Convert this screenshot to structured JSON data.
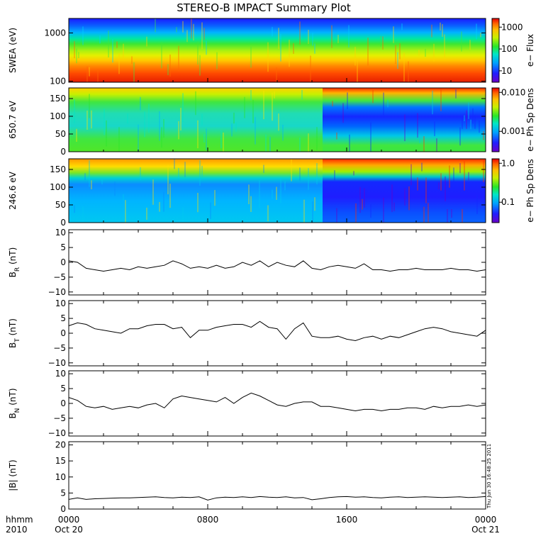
{
  "chart_data": {
    "title": "STEREO-B IMPACT Summary Plot",
    "time_axis": {
      "type": "time",
      "corner_labels": [
        "hhmm",
        "2010"
      ],
      "ticks": [
        {
          "at_hours": 0,
          "hhmm": "0000",
          "date": "Oct 20"
        },
        {
          "at_hours": 8,
          "hhmm": "0800",
          "date": ""
        },
        {
          "at_hours": 16,
          "hhmm": "1600",
          "date": ""
        },
        {
          "at_hours": 24,
          "hhmm": "0000",
          "date": "Oct 21"
        }
      ],
      "range_hours": [
        0,
        24
      ]
    },
    "spectrograms": [
      {
        "type": "heatmap",
        "ylabel": "SWEA (eV)",
        "yscale": "log",
        "ylim": [
          95,
          2000
        ],
        "yticks": [
          "1000",
          "100"
        ],
        "yticks_values": [
          1000,
          100
        ],
        "colorbar": {
          "label": "e− Flux",
          "scale": "log",
          "ticks": [
            "1000",
            "100",
            "10"
          ],
          "tick_values": [
            1000,
            100,
            10
          ],
          "range": [
            3,
            2500
          ]
        },
        "colormap": "rainbow",
        "description": "energy flux highest (red) at low energies, falling to blue above about 1000 eV"
      },
      {
        "type": "heatmap",
        "ylabel": "650.7 eV",
        "yscale": "linear",
        "ylim": [
          0,
          180
        ],
        "yticks": [
          "150",
          "100",
          "50",
          "0"
        ],
        "yticks_values": [
          150,
          100,
          50,
          0
        ],
        "colorbar": {
          "label": "e− Ph Sp Dens",
          "scale": "log",
          "ticks": [
            "0.010",
            "0.001"
          ],
          "tick_values": [
            0.01,
            0.001
          ],
          "range": [
            0.0003,
            0.013
          ]
        },
        "colormap": "rainbow",
        "description": "pitch angle distribution; depletion near 90-120 degrees after ~14:20"
      },
      {
        "type": "heatmap",
        "ylabel": "246.6 eV",
        "yscale": "linear",
        "ylim": [
          0,
          180
        ],
        "yticks": [
          "150",
          "100",
          "50",
          "0"
        ],
        "yticks_values": [
          150,
          100,
          50,
          0
        ],
        "colorbar": {
          "label": "e− Ph Sp Dens",
          "scale": "log",
          "ticks": [
            "1.0",
            "0.1"
          ],
          "tick_values": [
            1.0,
            0.1
          ],
          "range": [
            0.03,
            1.3
          ]
        },
        "colormap": "rainbow",
        "description": "pitch angle distribution; strong strahl near 180 degrees after ~14:20"
      }
    ],
    "line_panels": [
      {
        "type": "line",
        "ylabel_main": "B",
        "ylabel_sub": "R",
        "ylabel_rest": " (nT)",
        "ylim": [
          -11,
          11
        ],
        "yticks": [
          "10",
          "5",
          "0",
          "−5",
          "−10"
        ],
        "yticks_values": [
          10,
          5,
          0,
          -5,
          -10
        ],
        "x": [
          0,
          0.5,
          1,
          1.5,
          2,
          2.5,
          3,
          3.5,
          4,
          4.5,
          5,
          5.5,
          6,
          6.5,
          7,
          7.5,
          8,
          8.5,
          9,
          9.5,
          10,
          10.5,
          11,
          11.5,
          12,
          12.5,
          13,
          13.5,
          14,
          14.5,
          15,
          15.5,
          16,
          16.5,
          17,
          17.5,
          18,
          18.5,
          19,
          19.5,
          20,
          20.5,
          21,
          21.5,
          22,
          22.5,
          23,
          23.5,
          24
        ],
        "y": [
          0.5,
          0,
          -2,
          -2.5,
          -3,
          -2.5,
          -2,
          -2.5,
          -1.5,
          -2,
          -1.5,
          -1,
          0.5,
          -0.5,
          -2,
          -1.5,
          -2,
          -1,
          -2,
          -1.5,
          0,
          -1,
          0.5,
          -1.5,
          0,
          -1,
          -1.5,
          0.5,
          -2,
          -2.5,
          -1.5,
          -1,
          -1.5,
          -2,
          -0.5,
          -2.5,
          -2.5,
          -3,
          -2.5,
          -2.5,
          -2,
          -2.5,
          -2.5,
          -2.5,
          -2,
          -2.5,
          -2.5,
          -3,
          -2.5
        ]
      },
      {
        "type": "line",
        "ylabel_main": "B",
        "ylabel_sub": "T",
        "ylabel_rest": " (nT)",
        "ylim": [
          -11,
          11
        ],
        "yticks": [
          "10",
          "5",
          "0",
          "−5",
          "−10"
        ],
        "yticks_values": [
          10,
          5,
          0,
          -5,
          -10
        ],
        "x": [
          0,
          0.5,
          1,
          1.5,
          2,
          2.5,
          3,
          3.5,
          4,
          4.5,
          5,
          5.5,
          6,
          6.5,
          7,
          7.5,
          8,
          8.5,
          9,
          9.5,
          10,
          10.5,
          11,
          11.5,
          12,
          12.5,
          13,
          13.5,
          14,
          14.5,
          15,
          15.5,
          16,
          16.5,
          17,
          17.5,
          18,
          18.5,
          19,
          19.5,
          20,
          20.5,
          21,
          21.5,
          22,
          22.5,
          23,
          23.5,
          24
        ],
        "y": [
          2.5,
          3.5,
          3,
          1.5,
          1,
          0.5,
          0,
          1.5,
          1.5,
          2.5,
          3,
          3,
          1.5,
          2,
          -1.5,
          1,
          1,
          2,
          2.5,
          3,
          3,
          2,
          4,
          2,
          1.5,
          -2,
          1.5,
          3.5,
          -1,
          -1.5,
          -1.5,
          -1,
          -2,
          -2.5,
          -1.5,
          -1,
          -2,
          -1,
          -1.5,
          -0.5,
          0.5,
          1.5,
          2,
          1.5,
          0.5,
          0,
          -0.5,
          -1,
          1
        ]
      },
      {
        "type": "line",
        "ylabel_main": "B",
        "ylabel_sub": "N",
        "ylabel_rest": " (nT)",
        "ylim": [
          -11,
          11
        ],
        "yticks": [
          "10",
          "5",
          "0",
          "−5",
          "−10"
        ],
        "yticks_values": [
          10,
          5,
          0,
          -5,
          -10
        ],
        "x": [
          0,
          0.5,
          1,
          1.5,
          2,
          2.5,
          3,
          3.5,
          4,
          4.5,
          5,
          5.5,
          6,
          6.5,
          7,
          7.5,
          8,
          8.5,
          9,
          9.5,
          10,
          10.5,
          11,
          11.5,
          12,
          12.5,
          13,
          13.5,
          14,
          14.5,
          15,
          15.5,
          16,
          16.5,
          17,
          17.5,
          18,
          18.5,
          19,
          19.5,
          20,
          20.5,
          21,
          21.5,
          22,
          22.5,
          23,
          23.5,
          24
        ],
        "y": [
          2,
          1,
          -1,
          -1.5,
          -1,
          -2,
          -1.5,
          -1,
          -1.5,
          -0.5,
          0,
          -1.5,
          1.5,
          2.5,
          2,
          1.5,
          1,
          0.5,
          2,
          0,
          2,
          3.5,
          2.5,
          1,
          -0.5,
          -1,
          0,
          0.5,
          0.5,
          -1,
          -1,
          -1.5,
          -2,
          -2.5,
          -2,
          -2,
          -2.5,
          -2,
          -2,
          -1.5,
          -1.5,
          -2,
          -1,
          -1.5,
          -1,
          -1,
          -0.5,
          -1,
          -0.5
        ]
      },
      {
        "type": "line",
        "ylabel_main": "|B|",
        "ylabel_sub": "",
        "ylabel_rest": " (nT)",
        "ylim": [
          0,
          21
        ],
        "yticks": [
          "20",
          "15",
          "10",
          "5",
          "0"
        ],
        "yticks_values": [
          20,
          15,
          10,
          5,
          0
        ],
        "x": [
          0,
          0.5,
          1,
          1.5,
          2,
          2.5,
          3,
          3.5,
          4,
          4.5,
          5,
          5.5,
          6,
          6.5,
          7,
          7.5,
          8,
          8.5,
          9,
          9.5,
          10,
          10.5,
          11,
          11.5,
          12,
          12.5,
          13,
          13.5,
          14,
          14.5,
          15,
          15.5,
          16,
          16.5,
          17,
          17.5,
          18,
          18.5,
          19,
          19.5,
          20,
          20.5,
          21,
          21.5,
          22,
          22.5,
          23,
          23.5,
          24
        ],
        "y": [
          3,
          3.5,
          3,
          3.2,
          3.3,
          3.4,
          3.5,
          3.5,
          3.6,
          3.7,
          3.8,
          3.6,
          3.5,
          3.7,
          3.6,
          3.8,
          2.8,
          3.5,
          3.7,
          3.6,
          3.8,
          3.6,
          3.9,
          3.7,
          3.6,
          3.8,
          3.5,
          3.6,
          2.9,
          3.2,
          3.6,
          3.8,
          3.9,
          3.7,
          3.8,
          3.6,
          3.5,
          3.7,
          3.8,
          3.6,
          3.7,
          3.8,
          3.7,
          3.6,
          3.7,
          3.8,
          3.6,
          3.7,
          3.9
        ]
      }
    ],
    "timestamp": "Thu Jun 30 16:48:25 2011"
  }
}
